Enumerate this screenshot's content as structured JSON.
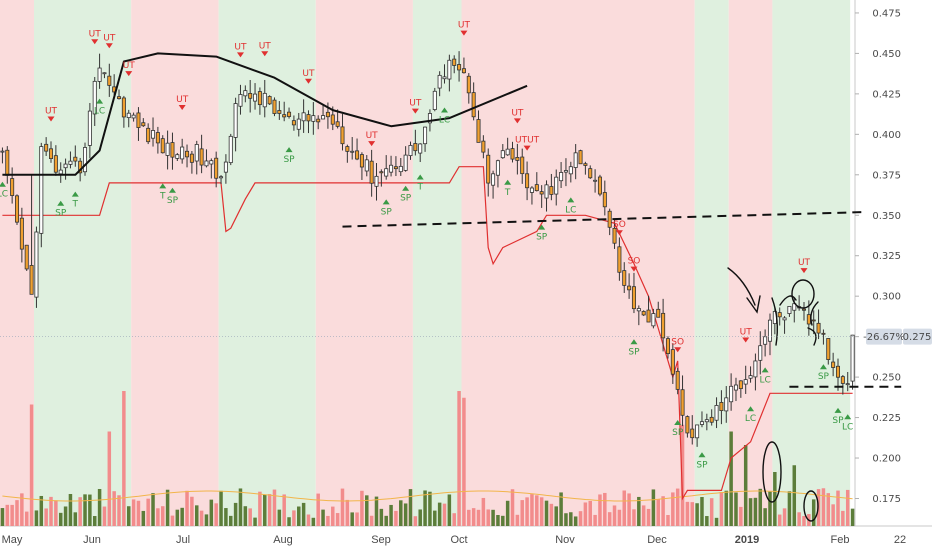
{
  "chart_data": {
    "type": "candlestick",
    "y_axis": {
      "ticks": [
        "0.475",
        "0.450",
        "0.425",
        "0.400",
        "0.375",
        "0.350",
        "0.325",
        "0.300",
        "0.275",
        "0.250",
        "0.225",
        "0.200",
        "0.175"
      ],
      "range": [
        0.158,
        0.483
      ],
      "position": "right"
    },
    "x_axis": {
      "labels": [
        "May",
        "Jun",
        "Jul",
        "Aug",
        "Sep",
        "Oct",
        "Nov",
        "Dec",
        "2019",
        "Feb",
        "22"
      ],
      "bold_labels": [
        "2019"
      ]
    },
    "last_price": {
      "value": "0.275",
      "change": "-26.67%"
    },
    "background_regimes": [
      {
        "start": 0,
        "end": 7,
        "regime": "bearish"
      },
      {
        "start": 7,
        "end": 27,
        "regime": "bullish"
      },
      {
        "start": 27,
        "end": 45,
        "regime": "bearish"
      },
      {
        "start": 45,
        "end": 65,
        "regime": "bullish"
      },
      {
        "start": 65,
        "end": 85,
        "regime": "bearish"
      },
      {
        "start": 85,
        "end": 95,
        "regime": "bullish"
      },
      {
        "start": 95,
        "end": 143,
        "regime": "bearish"
      },
      {
        "start": 143,
        "end": 150,
        "regime": "bullish"
      },
      {
        "start": 150,
        "end": 159,
        "regime": "bearish"
      },
      {
        "start": 159,
        "end": 175,
        "regime": "bullish"
      }
    ],
    "price_anchors": [
      [
        0,
        0.385
      ],
      [
        6,
        0.3
      ],
      [
        8,
        0.39
      ],
      [
        12,
        0.375
      ],
      [
        16,
        0.38
      ],
      [
        20,
        0.445
      ],
      [
        24,
        0.42
      ],
      [
        28,
        0.405
      ],
      [
        34,
        0.39
      ],
      [
        40,
        0.388
      ],
      [
        45,
        0.372
      ],
      [
        48,
        0.42
      ],
      [
        52,
        0.425
      ],
      [
        56,
        0.415
      ],
      [
        60,
        0.405
      ],
      [
        64,
        0.41
      ],
      [
        68,
        0.41
      ],
      [
        72,
        0.39
      ],
      [
        76,
        0.375
      ],
      [
        80,
        0.38
      ],
      [
        86,
        0.395
      ],
      [
        92,
        0.45
      ],
      [
        96,
        0.43
      ],
      [
        100,
        0.37
      ],
      [
        104,
        0.39
      ],
      [
        110,
        0.36
      ],
      [
        114,
        0.37
      ],
      [
        118,
        0.385
      ],
      [
        122,
        0.37
      ],
      [
        124,
        0.36
      ],
      [
        128,
        0.305
      ],
      [
        132,
        0.29
      ],
      [
        136,
        0.28
      ],
      [
        138,
        0.25
      ],
      [
        140,
        0.225
      ],
      [
        142,
        0.215
      ],
      [
        146,
        0.225
      ],
      [
        150,
        0.24
      ],
      [
        154,
        0.255
      ],
      [
        158,
        0.285
      ],
      [
        161,
        0.29
      ],
      [
        164,
        0.29
      ],
      [
        168,
        0.28
      ],
      [
        171,
        0.255
      ],
      [
        174,
        0.25
      ],
      [
        175,
        0.275
      ]
    ],
    "stop_line": [
      [
        0,
        0.35
      ],
      [
        20,
        0.35
      ],
      [
        22,
        0.37
      ],
      [
        45,
        0.37
      ],
      [
        46,
        0.34
      ],
      [
        47,
        0.342
      ],
      [
        50,
        0.36
      ],
      [
        52,
        0.37
      ],
      [
        92,
        0.37
      ],
      [
        94,
        0.38
      ],
      [
        99,
        0.38
      ],
      [
        100,
        0.33
      ],
      [
        101,
        0.32
      ],
      [
        103,
        0.33
      ],
      [
        110,
        0.34
      ],
      [
        112,
        0.35
      ],
      [
        120,
        0.35
      ],
      [
        126,
        0.345
      ],
      [
        130,
        0.32
      ],
      [
        133,
        0.3
      ],
      [
        134,
        0.29
      ],
      [
        135,
        0.28
      ],
      [
        136,
        0.27
      ],
      [
        137,
        0.26
      ],
      [
        138,
        0.25
      ],
      [
        139,
        0.26
      ],
      [
        140,
        0.175
      ],
      [
        141,
        0.18
      ],
      [
        143,
        0.18
      ],
      [
        148,
        0.18
      ],
      [
        150,
        0.2
      ],
      [
        154,
        0.21
      ],
      [
        156,
        0.225
      ],
      [
        158,
        0.24
      ],
      [
        164,
        0.24
      ],
      [
        170,
        0.24
      ],
      [
        175,
        0.24
      ]
    ],
    "trend_lines": [
      {
        "style": "solid",
        "points": [
          [
            0,
            0.375
          ],
          [
            15,
            0.375
          ],
          [
            20,
            0.39
          ],
          [
            25,
            0.445
          ],
          [
            32,
            0.45
          ],
          [
            44,
            0.448
          ],
          [
            56,
            0.435
          ],
          [
            68,
            0.415
          ],
          [
            80,
            0.405
          ],
          [
            92,
            0.41
          ],
          [
            108,
            0.43
          ]
        ]
      },
      {
        "style": "dashed",
        "points": [
          [
            70,
            0.343
          ],
          [
            178,
            0.352
          ]
        ]
      },
      {
        "style": "dashed",
        "points": [
          [
            162,
            0.244
          ],
          [
            185,
            0.244
          ]
        ]
      }
    ],
    "signals": [
      {
        "bar": 10,
        "text": "UT",
        "kind": "sell"
      },
      {
        "bar": 22,
        "text": "UT",
        "kind": "sell"
      },
      {
        "bar": 26,
        "text": "UT",
        "kind": "sell"
      },
      {
        "bar": 19,
        "text": "UT",
        "kind": "sell"
      },
      {
        "bar": 37,
        "text": "UT",
        "kind": "sell"
      },
      {
        "bar": 49,
        "text": "UT",
        "kind": "sell"
      },
      {
        "bar": 54,
        "text": "UT",
        "kind": "sell"
      },
      {
        "bar": 63,
        "text": "UT",
        "kind": "sell"
      },
      {
        "bar": 76,
        "text": "UT",
        "kind": "sell"
      },
      {
        "bar": 85,
        "text": "UT",
        "kind": "sell"
      },
      {
        "bar": 95,
        "text": "UT",
        "kind": "sell"
      },
      {
        "bar": 106,
        "text": "UT",
        "kind": "sell"
      },
      {
        "bar": 108,
        "text": "UTUT",
        "kind": "sell"
      },
      {
        "bar": 127,
        "text": "SO",
        "kind": "sell"
      },
      {
        "bar": 130,
        "text": "SO",
        "kind": "sell"
      },
      {
        "bar": 139,
        "text": "SO",
        "kind": "sell"
      },
      {
        "bar": 153,
        "text": "UT",
        "kind": "sell"
      },
      {
        "bar": 165,
        "text": "UT",
        "kind": "sell"
      },
      {
        "bar": 0,
        "text": "LC",
        "kind": "buy"
      },
      {
        "bar": 12,
        "text": "SP",
        "kind": "buy"
      },
      {
        "bar": 15,
        "text": "T",
        "kind": "buy"
      },
      {
        "bar": 20,
        "text": "LC",
        "kind": "buy"
      },
      {
        "bar": 33,
        "text": "T",
        "kind": "buy"
      },
      {
        "bar": 35,
        "text": "SP",
        "kind": "buy"
      },
      {
        "bar": 59,
        "text": "SP",
        "kind": "buy"
      },
      {
        "bar": 79,
        "text": "SP",
        "kind": "buy"
      },
      {
        "bar": 83,
        "text": "SP",
        "kind": "buy"
      },
      {
        "bar": 86,
        "text": "T",
        "kind": "buy"
      },
      {
        "bar": 91,
        "text": "LC",
        "kind": "buy"
      },
      {
        "bar": 104,
        "text": "T",
        "kind": "buy"
      },
      {
        "bar": 111,
        "text": "SP",
        "kind": "buy"
      },
      {
        "bar": 117,
        "text": "LC",
        "kind": "buy"
      },
      {
        "bar": 130,
        "text": "SP",
        "kind": "buy"
      },
      {
        "bar": 139,
        "text": "SP",
        "kind": "buy"
      },
      {
        "bar": 144,
        "text": "SP",
        "kind": "buy"
      },
      {
        "bar": 154,
        "text": "LC",
        "kind": "buy"
      },
      {
        "bar": 157,
        "text": "LC",
        "kind": "buy"
      },
      {
        "bar": 169,
        "text": "SP",
        "kind": "buy"
      },
      {
        "bar": 172,
        "text": "SP",
        "kind": "buy"
      },
      {
        "bar": 174,
        "text": "LC",
        "kind": "buy"
      }
    ],
    "volume_spikes": [
      [
        6,
        0.9
      ],
      [
        22,
        0.7
      ],
      [
        25,
        1.0
      ],
      [
        94,
        1.0
      ],
      [
        95,
        0.95
      ],
      [
        140,
        0.75
      ],
      [
        150,
        0.7
      ],
      [
        153,
        0.6
      ],
      [
        159,
        0.4
      ],
      [
        163,
        0.45
      ]
    ],
    "annotations": [
      "arrow",
      "circle",
      "circle",
      "bracket",
      "circle",
      "circle"
    ],
    "colors": {
      "up_candle": "#ffffff",
      "down_candle": "#f0a030",
      "candle_outline": "#333333",
      "bull_bg": "#dff0df",
      "bear_bg": "#fadcdc",
      "stop_line": "#e03030",
      "trend_line": "#111111",
      "vol_up": "#5c7d3a",
      "vol_down": "#f28c8c",
      "buy_signal": "#3a9a46",
      "sell_signal": "#e03030",
      "price_tag_bg": "#d5dce6",
      "axis_text": "#4a4a4a"
    }
  }
}
